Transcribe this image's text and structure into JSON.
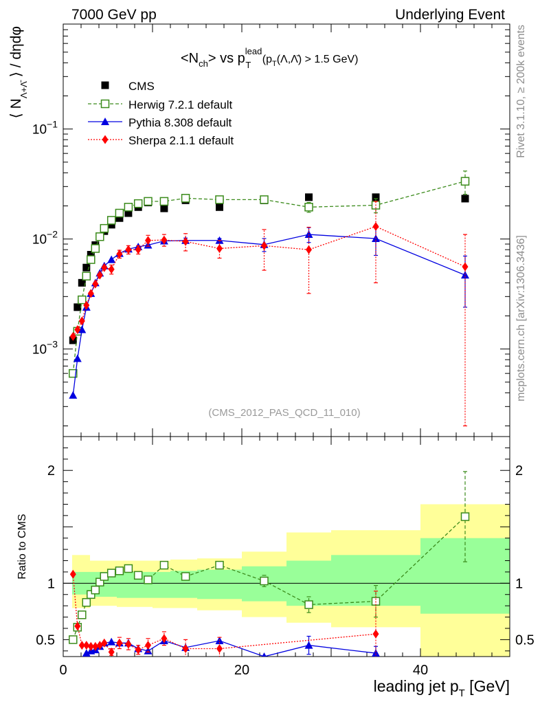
{
  "header": {
    "left": "7000 GeV pp",
    "right": "Underlying Event"
  },
  "side_text": {
    "rivet": "Rivet 3.1.10, ≥ 200k events",
    "mcplots": "mcplots.cern.ch [arXiv:1306.3436]"
  },
  "analysis_id": "(CMS_2012_PAS_QCD_11_010)",
  "colors": {
    "data": "#000000",
    "herwig": "#3a8a1a",
    "pythia": "#0000e0",
    "sherpa": "#ff0000",
    "band_inner": "#99ff99",
    "band_outer": "#ffff99"
  },
  "chart_data": [
    {
      "type": "line",
      "panel": "main",
      "title": "<N_ch> vs p_T^lead (p_T(Λ,Λ̄) > 1.5 GeV)",
      "ylabel": "⟨ N_{Λ+Λ̄} ⟩ / dηdφ",
      "yscale": "log",
      "xlim": [
        0,
        50
      ],
      "ylim": [
        0.00016,
        0.9
      ],
      "ytick_labels": [
        "10^{-3}",
        "10^{-2}",
        "10^{-1}"
      ],
      "legend_position": "top-left",
      "series": [
        {
          "name": "CMS",
          "style": "data",
          "x": [
            1.1,
            1.6,
            2.1,
            2.6,
            3.1,
            3.6,
            4.1,
            4.6,
            5.4,
            6.3,
            7.3,
            8.4,
            9.5,
            11.3,
            13.7,
            17.5,
            22.5,
            27.5,
            35.0,
            45.0
          ],
          "y": [
            0.0012,
            0.0024,
            0.004,
            0.0055,
            0.0072,
            0.0088,
            0.0104,
            0.0118,
            0.0135,
            0.0155,
            0.0172,
            0.0195,
            0.0215,
            0.019,
            0.0225,
            0.0195,
            0.0225,
            0.024,
            0.024,
            0.0233
          ]
        },
        {
          "name": "Herwig 7.2.1 default",
          "style": "herwig",
          "x": [
            1.1,
            1.6,
            2.1,
            2.6,
            3.1,
            3.6,
            4.1,
            4.6,
            5.4,
            6.3,
            7.3,
            8.4,
            9.5,
            11.3,
            13.7,
            17.5,
            22.5,
            27.5,
            35.0,
            45.0
          ],
          "y": [
            0.0006,
            0.00145,
            0.0028,
            0.0046,
            0.0065,
            0.0082,
            0.0105,
            0.0125,
            0.0148,
            0.0172,
            0.0195,
            0.021,
            0.022,
            0.022,
            0.0235,
            0.0228,
            0.0228,
            0.0195,
            0.0203,
            0.0335
          ],
          "yerr": [
            0,
            0,
            0,
            0,
            0,
            0,
            0,
            0,
            0,
            0,
            0,
            0,
            0,
            0,
            0,
            0,
            0.0008,
            0.002,
            0.003,
            0.008
          ]
        },
        {
          "name": "Pythia 8.308 default",
          "style": "pythia",
          "x": [
            1.1,
            1.6,
            2.1,
            2.6,
            3.1,
            3.6,
            4.1,
            4.6,
            5.4,
            6.3,
            7.3,
            8.4,
            9.5,
            11.3,
            13.7,
            17.5,
            22.5,
            27.5,
            35.0,
            45.0
          ],
          "y": [
            0.00038,
            0.00082,
            0.0015,
            0.0024,
            0.0032,
            0.004,
            0.0049,
            0.0057,
            0.0065,
            0.0074,
            0.0081,
            0.0085,
            0.0088,
            0.0096,
            0.0097,
            0.0097,
            0.0089,
            0.011,
            0.0101,
            0.0047
          ],
          "yerr": [
            0,
            0,
            0,
            0,
            0,
            0,
            0,
            0,
            0,
            0,
            0,
            0,
            0,
            0,
            0.0005,
            0.0004,
            0.0012,
            0.0017,
            0.003,
            0.0023
          ]
        },
        {
          "name": "Sherpa 2.1.1 default",
          "style": "sherpa",
          "x": [
            1.1,
            1.6,
            2.1,
            2.6,
            3.1,
            3.6,
            4.1,
            4.6,
            5.4,
            6.3,
            7.3,
            8.4,
            9.5,
            11.3,
            13.7,
            17.5,
            22.5,
            27.5,
            35.0,
            45.0
          ],
          "y": [
            0.0013,
            0.0015,
            0.0018,
            0.0025,
            0.0032,
            0.0039,
            0.0047,
            0.0055,
            0.0053,
            0.0073,
            0.008,
            0.008,
            0.0097,
            0.0098,
            0.0095,
            0.0082,
            0.0087,
            0.008,
            0.013,
            0.0056
          ],
          "yerr": [
            0,
            0,
            0,
            0,
            0,
            0,
            0,
            0,
            0.0005,
            0.0006,
            0.0007,
            0.0007,
            0.0011,
            0.0012,
            0.0017,
            0.0015,
            0.0035,
            0.0048,
            0.009,
            0.0054
          ]
        }
      ]
    },
    {
      "type": "line",
      "panel": "ratio",
      "ylabel": "Ratio to CMS",
      "xlabel": "leading jet p_T [GeV]",
      "xlim": [
        0,
        50
      ],
      "ylim": [
        0.35,
        2.3
      ],
      "xticks": [
        0,
        20,
        40
      ],
      "yticks": [
        0.5,
        1,
        2
      ],
      "bands": {
        "edges": [
          1,
          3,
          6,
          10,
          12,
          15,
          20,
          25,
          30,
          40,
          50
        ],
        "inner_low": [
          0.9,
          0.88,
          0.87,
          0.87,
          0.87,
          0.86,
          0.84,
          0.8,
          0.8,
          0.73
        ],
        "inner_high": [
          1.1,
          1.1,
          1.1,
          1.1,
          1.11,
          1.12,
          1.15,
          1.2,
          1.25,
          1.4
        ],
        "outer_low": [
          0.78,
          0.8,
          0.79,
          0.78,
          0.78,
          0.76,
          0.7,
          0.65,
          0.61,
          0.35
        ],
        "outer_high": [
          1.25,
          1.2,
          1.2,
          1.2,
          1.21,
          1.22,
          1.28,
          1.45,
          1.47,
          1.7
        ]
      },
      "series": [
        {
          "name": "Herwig 7.2.1 default",
          "style": "herwig",
          "x": [
            1.1,
            1.6,
            2.1,
            2.6,
            3.1,
            3.6,
            4.1,
            4.6,
            5.4,
            6.3,
            7.3,
            8.4,
            9.5,
            11.3,
            13.7,
            17.5,
            22.5,
            27.5,
            35.0,
            45.0
          ],
          "y": [
            0.5,
            0.61,
            0.72,
            0.83,
            0.9,
            0.94,
            1.01,
            1.06,
            1.09,
            1.11,
            1.13,
            1.07,
            1.03,
            1.16,
            1.06,
            1.16,
            1.02,
            0.81,
            0.84,
            1.59
          ],
          "yerr": [
            0,
            0,
            0,
            0,
            0,
            0,
            0,
            0,
            0,
            0,
            0,
            0,
            0,
            0,
            0,
            0,
            0.05,
            0.07,
            0.14,
            0.4
          ]
        },
        {
          "name": "Pythia 8.308 default",
          "style": "pythia",
          "x": [
            2.6,
            3.1,
            3.6,
            4.1,
            4.6,
            5.4,
            6.3,
            7.3,
            8.4,
            9.5,
            11.3,
            13.7,
            17.5,
            22.5,
            27.5,
            35.0
          ],
          "y": [
            0.38,
            0.4,
            0.41,
            0.44,
            0.47,
            0.48,
            0.47,
            0.47,
            0.42,
            0.4,
            0.49,
            0.43,
            0.49,
            0.35,
            0.45,
            0.38
          ],
          "yerr": [
            0,
            0,
            0,
            0,
            0,
            0,
            0,
            0,
            0,
            0,
            0,
            0,
            0,
            0,
            0.08,
            0.06
          ]
        },
        {
          "name": "Sherpa 2.1.1 default",
          "style": "sherpa",
          "x": [
            1.1,
            1.6,
            2.1,
            2.6,
            3.1,
            3.6,
            4.1,
            4.6,
            5.4,
            6.3,
            7.3,
            8.4,
            9.5,
            11.3,
            13.7,
            17.5,
            35.0
          ],
          "y": [
            1.08,
            0.62,
            0.45,
            0.45,
            0.44,
            0.44,
            0.45,
            0.47,
            0.39,
            0.47,
            0.46,
            0.41,
            0.45,
            0.51,
            0.42,
            0.42,
            0.55
          ],
          "yerr": [
            0,
            0,
            0,
            0,
            0,
            0,
            0,
            0,
            0.03,
            0.05,
            0.05,
            0.04,
            0.06,
            0.06,
            0.08,
            0.1,
            0.38
          ]
        }
      ]
    }
  ]
}
